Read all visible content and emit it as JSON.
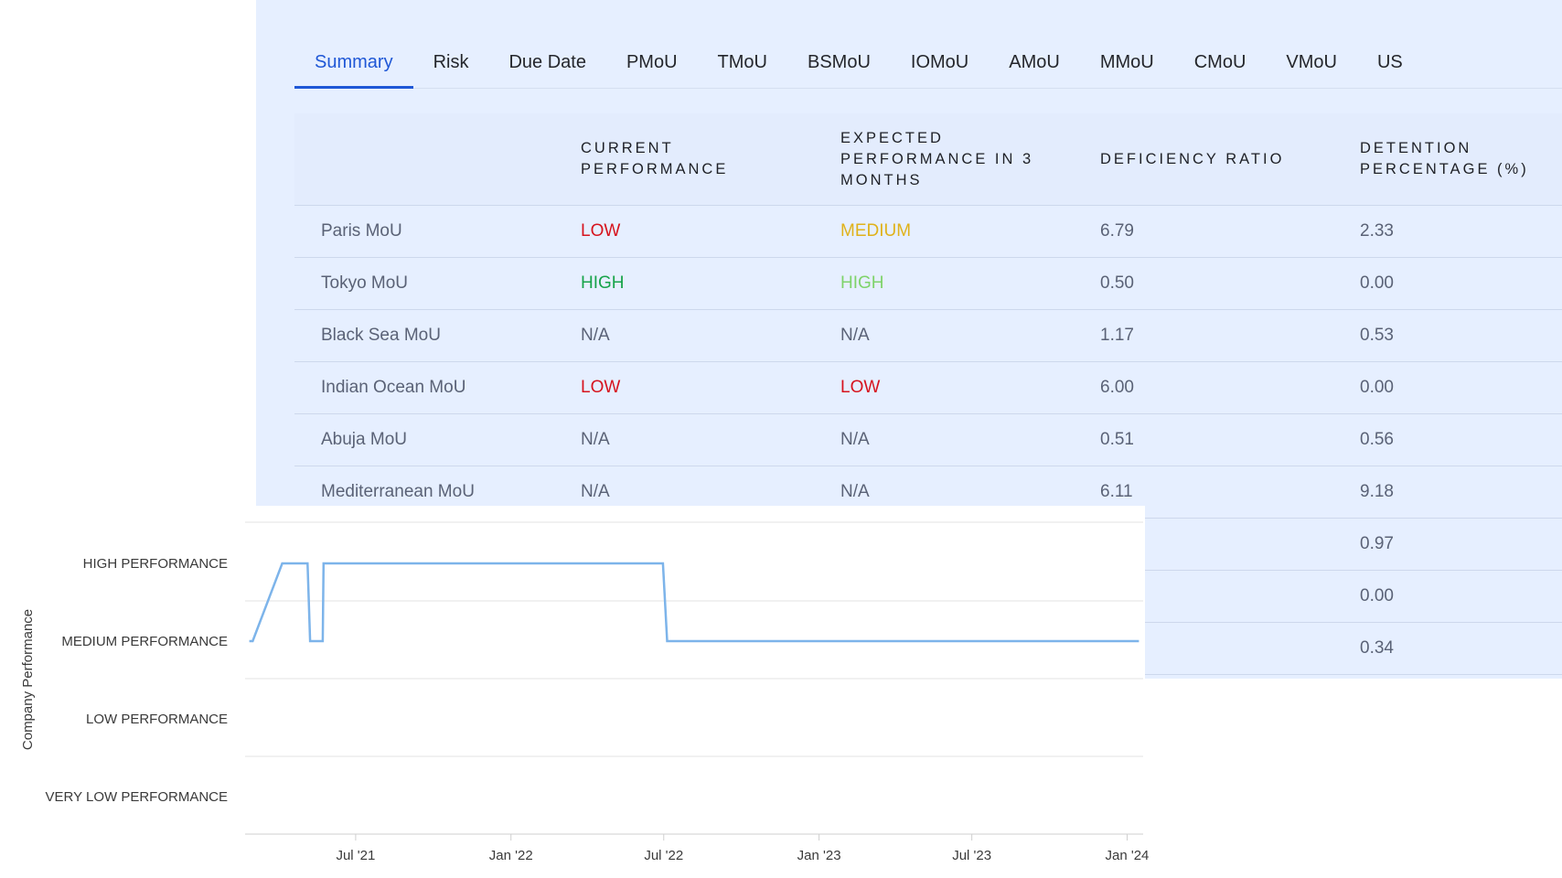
{
  "tabs": [
    {
      "label": "Summary",
      "active": true
    },
    {
      "label": "Risk",
      "active": false
    },
    {
      "label": "Due Date",
      "active": false
    },
    {
      "label": "PMoU",
      "active": false
    },
    {
      "label": "TMoU",
      "active": false
    },
    {
      "label": "BSMoU",
      "active": false
    },
    {
      "label": "IOMoU",
      "active": false
    },
    {
      "label": "AMoU",
      "active": false
    },
    {
      "label": "MMoU",
      "active": false
    },
    {
      "label": "CMoU",
      "active": false
    },
    {
      "label": "VMoU",
      "active": false
    },
    {
      "label": "US",
      "active": false
    }
  ],
  "table": {
    "headers": [
      "",
      "CURRENT PERFORMANCE",
      "EXPECTED PERFORMANCE IN 3 MONTHS",
      "DEFICIENCY RATIO",
      "DETENTION PERCENTAGE (%)"
    ],
    "rows": [
      {
        "name": "Paris MoU",
        "current": "LOW",
        "expected": "MEDIUM",
        "deficiency": "6.79",
        "detention": "2.33"
      },
      {
        "name": "Tokyo MoU",
        "current": "HIGH",
        "expected": "HIGH",
        "deficiency": "0.50",
        "detention": "0.00"
      },
      {
        "name": "Black Sea MoU",
        "current": "N/A",
        "expected": "N/A",
        "deficiency": "1.17",
        "detention": "0.53"
      },
      {
        "name": "Indian Ocean MoU",
        "current": "LOW",
        "expected": "LOW",
        "deficiency": "6.00",
        "detention": "0.00"
      },
      {
        "name": "Abuja MoU",
        "current": "N/A",
        "expected": "N/A",
        "deficiency": "0.51",
        "detention": "0.56"
      },
      {
        "name": "Mediterranean MoU",
        "current": "N/A",
        "expected": "N/A",
        "deficiency": "6.11",
        "detention": "9.18"
      },
      {
        "name": "",
        "current": "",
        "expected": "",
        "deficiency": "",
        "detention": "0.97"
      },
      {
        "name": "",
        "current": "",
        "expected": "",
        "deficiency": "",
        "detention": "0.00"
      },
      {
        "name": "",
        "current": "",
        "expected": "",
        "deficiency": "",
        "detention": "0.34"
      }
    ]
  },
  "colors": {
    "panel_bg": "#e6efff",
    "accent": "#1f57d6",
    "low": "#d6141e",
    "medium": "#e0b21a",
    "high_current": "#17a34a",
    "high_expected": "#7ed36a",
    "text_muted": "#5a6276",
    "line": "#7db4ea"
  },
  "chart_data": {
    "type": "line",
    "ylabel": "Company Performance",
    "xlabel": "",
    "y_categories": [
      "VERY LOW PERFORMANCE",
      "LOW PERFORMANCE",
      "MEDIUM PERFORMANCE",
      "HIGH PERFORMANCE"
    ],
    "x_ticks": [
      "Jul '21",
      "Jan '22",
      "Jul '22",
      "Jan '23",
      "Jul '23",
      "Jan '24"
    ],
    "xlim": [
      "2021-02-20",
      "2024-01-20"
    ],
    "grid": true,
    "series": [
      {
        "points": [
          [
            "2021-02-25",
            "MEDIUM PERFORMANCE"
          ],
          [
            "2021-03-01",
            "MEDIUM PERFORMANCE"
          ],
          [
            "2021-04-05",
            "HIGH PERFORMANCE"
          ],
          [
            "2021-05-05",
            "HIGH PERFORMANCE"
          ],
          [
            "2021-05-08",
            "MEDIUM PERFORMANCE"
          ],
          [
            "2021-05-23",
            "MEDIUM PERFORMANCE"
          ],
          [
            "2021-05-24",
            "HIGH PERFORMANCE"
          ],
          [
            "2022-06-30",
            "HIGH PERFORMANCE"
          ],
          [
            "2022-07-05",
            "MEDIUM PERFORMANCE"
          ],
          [
            "2024-01-15",
            "MEDIUM PERFORMANCE"
          ]
        ]
      }
    ]
  }
}
